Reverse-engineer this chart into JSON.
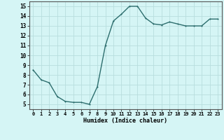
{
  "x": [
    0,
    1,
    2,
    3,
    4,
    5,
    6,
    7,
    8,
    9,
    10,
    11,
    12,
    13,
    14,
    15,
    16,
    17,
    18,
    19,
    20,
    21,
    22,
    23
  ],
  "y": [
    8.5,
    7.5,
    7.2,
    5.8,
    5.3,
    5.2,
    5.2,
    5.0,
    6.8,
    11.0,
    13.5,
    14.2,
    15.0,
    15.0,
    13.8,
    13.2,
    13.1,
    13.4,
    13.2,
    13.0,
    13.0,
    13.0,
    13.7,
    13.7
  ],
  "xlabel": "Humidex (Indice chaleur)",
  "ylim": [
    4.5,
    15.5
  ],
  "xlim": [
    -0.5,
    23.5
  ],
  "yticks": [
    5,
    6,
    7,
    8,
    9,
    10,
    11,
    12,
    13,
    14,
    15
  ],
  "xticks": [
    0,
    1,
    2,
    3,
    4,
    5,
    6,
    7,
    8,
    9,
    10,
    11,
    12,
    13,
    14,
    15,
    16,
    17,
    18,
    19,
    20,
    21,
    22,
    23
  ],
  "line_color": "#2d6e6e",
  "bg_color": "#d5f5f5",
  "grid_color": "#b8dede",
  "markersize": 2.0,
  "linewidth": 1.0,
  "tick_fontsize": 5.0,
  "xlabel_fontsize": 6.0
}
